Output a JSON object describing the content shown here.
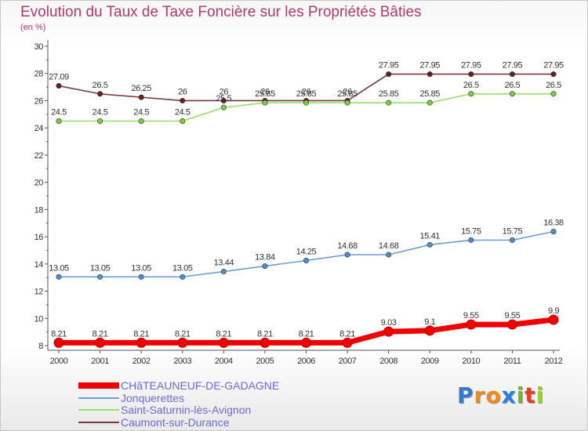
{
  "title": "Evolution du Taux de Taxe Foncière sur les Propriétés Bâties",
  "units": "(en %)",
  "logo": {
    "letters": [
      "P",
      "r",
      "o",
      "x",
      "i",
      "t",
      "i"
    ],
    "colors": [
      "#3a78c9",
      "#f08a1c",
      "#f08a1c",
      "#2a7de0",
      "#74b82e",
      "#e23c2a",
      "#9ad12c"
    ]
  },
  "chart_data": {
    "type": "line",
    "x": [
      "2000",
      "2001",
      "2002",
      "2003",
      "2004",
      "2005",
      "2006",
      "2007",
      "2008",
      "2009",
      "2010",
      "2011",
      "2012"
    ],
    "ylim": [
      8,
      30
    ],
    "yticks": [
      8,
      10,
      12,
      14,
      16,
      18,
      20,
      22,
      24,
      26,
      28,
      30
    ],
    "grid": false,
    "legend_position": "bottom-left",
    "series": [
      {
        "name": "CHâTEAUNEUF-DE-GADAGNE",
        "color": "#f00000",
        "width": 7,
        "marker_color": "#f00000",
        "values": [
          8.21,
          8.21,
          8.21,
          8.21,
          8.21,
          8.21,
          8.21,
          8.21,
          9.03,
          9.1,
          9.55,
          9.55,
          9.9
        ],
        "labels": [
          "8.21",
          "8.21",
          "8.21",
          "8.21",
          "8.21",
          "8.21",
          "8.21",
          "8.21",
          "9.03",
          "9.1",
          "9.55",
          "9.55",
          "9.9"
        ]
      },
      {
        "name": "Jonquerettes",
        "color": "#6f9fd0",
        "width": 1.6,
        "marker_color": "#4d8fd1",
        "values": [
          13.05,
          13.05,
          13.05,
          13.05,
          13.44,
          13.84,
          14.25,
          14.68,
          14.68,
          15.41,
          15.75,
          15.75,
          16.38
        ],
        "labels": [
          "13.05",
          "13.05",
          "13.05",
          "13.05",
          "13.44",
          "13.84",
          "14.25",
          "14.68",
          "14.68",
          "15.41",
          "15.75",
          "15.75",
          "16.38"
        ]
      },
      {
        "name": "Saint-Saturnin-lès-Avignon",
        "color": "#98e06a",
        "width": 1.6,
        "marker_color": "#7ccf3c",
        "values": [
          24.5,
          24.5,
          24.5,
          24.5,
          25.5,
          25.85,
          25.85,
          25.85,
          25.85,
          25.85,
          26.5,
          26.5,
          26.5
        ],
        "labels": [
          "24.5",
          "24.5",
          "24.5",
          "24.5",
          "25.5",
          "25.85",
          "25.85",
          "25.85",
          "25.85",
          "25.85",
          "26.5",
          "26.5",
          "26.5"
        ]
      },
      {
        "name": "Caumont-sur-Durance",
        "color": "#7a3a3a",
        "width": 1.6,
        "marker_color": "#6a1f1f",
        "values": [
          27.09,
          26.5,
          26.25,
          26,
          26,
          26,
          26,
          26,
          27.95,
          27.95,
          27.95,
          27.95,
          27.95
        ],
        "labels": [
          "27.09",
          "26.5",
          "26.25",
          "26",
          "26",
          "26",
          "26",
          "26",
          "27.95",
          "27.95",
          "27.95",
          "27.95",
          "27.95"
        ]
      }
    ]
  }
}
